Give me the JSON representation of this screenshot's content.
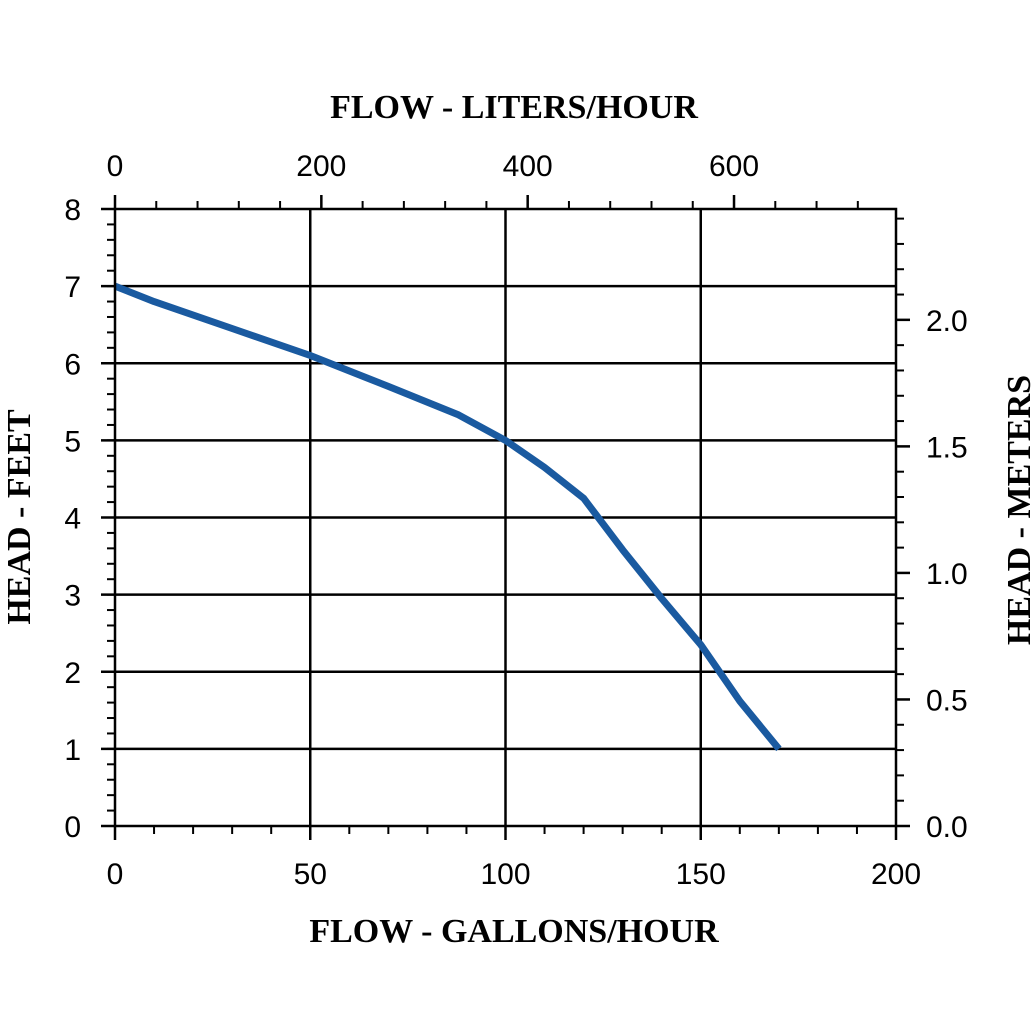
{
  "chart_data": {
    "type": "line",
    "title": "",
    "xlabel": "FLOW - GALLONS/HOUR",
    "ylabel": "HEAD - FEET",
    "x2label": "FLOW - LITERS/HOUR",
    "y2label": "HEAD - METERS",
    "xlim": [
      0,
      200
    ],
    "ylim": [
      0,
      8
    ],
    "x2lim": [
      0,
      757
    ],
    "y2lim": [
      0,
      2.438
    ],
    "x_ticks": [
      "0",
      "50",
      "100",
      "150",
      "200"
    ],
    "y_ticks": [
      "0",
      "1",
      "2",
      "3",
      "4",
      "5",
      "6",
      "7",
      "8"
    ],
    "x2_ticks": [
      "0",
      "200",
      "400",
      "600"
    ],
    "y2_ticks": [
      "0.0",
      "0.5",
      "1.0",
      "1.5",
      "2.0"
    ],
    "grid": true,
    "series": [
      {
        "color": "#1a5aa0",
        "x": [
          0,
          10,
          30,
          50,
          70,
          88,
          100,
          110,
          120,
          130,
          140,
          150,
          160,
          170
        ],
        "y": [
          7.0,
          6.8,
          6.45,
          6.1,
          5.7,
          5.33,
          5.0,
          4.65,
          4.25,
          3.58,
          2.95,
          2.35,
          1.62,
          1.0
        ]
      }
    ]
  }
}
